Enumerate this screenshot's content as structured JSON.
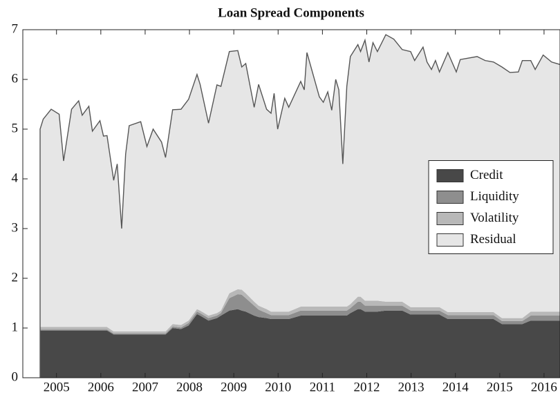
{
  "chart_data": {
    "type": "stacked_area",
    "title": "Loan Spread Components",
    "x": [
      2004.63,
      2004.7,
      2004.88,
      2005.06,
      2005.16,
      2005.34,
      2005.5,
      2005.58,
      2005.73,
      2005.81,
      2005.98,
      2006.06,
      2006.14,
      2006.29,
      2006.37,
      2006.47,
      2006.56,
      2006.64,
      2006.9,
      2007.04,
      2007.18,
      2007.37,
      2007.46,
      2007.62,
      2007.81,
      2007.98,
      2008.17,
      2008.24,
      2008.43,
      2008.62,
      2008.71,
      2008.9,
      2009.09,
      2009.18,
      2009.27,
      2009.46,
      2009.56,
      2009.74,
      2009.84,
      2009.91,
      2009.99,
      2010.15,
      2010.24,
      2010.51,
      2010.59,
      2010.65,
      2010.93,
      2011.02,
      2011.12,
      2011.21,
      2011.3,
      2011.37,
      2011.46,
      2011.55,
      2011.63,
      2011.8,
      2011.86,
      2011.96,
      2012.05,
      2012.14,
      2012.24,
      2012.43,
      2012.61,
      2012.8,
      2012.99,
      2013.08,
      2013.27,
      2013.36,
      2013.46,
      2013.55,
      2013.64,
      2013.83,
      2014.02,
      2014.11,
      2014.49,
      2014.67,
      2014.86,
      2015.05,
      2015.23,
      2015.42,
      2015.51,
      2015.7,
      2015.8,
      2015.98,
      2016.17,
      2016.36
    ],
    "series": [
      {
        "name": "Credit",
        "color": "#484848",
        "values": [
          0.95,
          0.95,
          0.95,
          0.95,
          0.95,
          0.95,
          0.95,
          0.95,
          0.95,
          0.95,
          0.95,
          0.95,
          0.95,
          0.87,
          0.87,
          0.87,
          0.87,
          0.87,
          0.87,
          0.87,
          0.87,
          0.87,
          0.87,
          1.0,
          0.98,
          1.05,
          1.28,
          1.25,
          1.15,
          1.2,
          1.25,
          1.35,
          1.38,
          1.35,
          1.33,
          1.25,
          1.22,
          1.2,
          1.18,
          1.18,
          1.18,
          1.18,
          1.18,
          1.25,
          1.25,
          1.25,
          1.25,
          1.25,
          1.25,
          1.25,
          1.25,
          1.25,
          1.25,
          1.25,
          1.3,
          1.38,
          1.38,
          1.33,
          1.33,
          1.33,
          1.33,
          1.35,
          1.35,
          1.35,
          1.27,
          1.27,
          1.27,
          1.27,
          1.27,
          1.27,
          1.27,
          1.18,
          1.18,
          1.18,
          1.18,
          1.18,
          1.18,
          1.08,
          1.08,
          1.08,
          1.08,
          1.15,
          1.15,
          1.15,
          1.15,
          1.15
        ]
      },
      {
        "name": "Liquidity",
        "color": "#8e8e8e",
        "values": [
          0.02,
          0.02,
          0.02,
          0.02,
          0.02,
          0.02,
          0.02,
          0.02,
          0.02,
          0.02,
          0.02,
          0.02,
          0.02,
          0.02,
          0.02,
          0.02,
          0.02,
          0.02,
          0.02,
          0.02,
          0.02,
          0.02,
          0.02,
          0.03,
          0.03,
          0.05,
          0.05,
          0.05,
          0.05,
          0.05,
          0.05,
          0.25,
          0.3,
          0.32,
          0.27,
          0.2,
          0.15,
          0.1,
          0.08,
          0.08,
          0.08,
          0.08,
          0.08,
          0.1,
          0.1,
          0.1,
          0.1,
          0.1,
          0.1,
          0.1,
          0.1,
          0.1,
          0.1,
          0.1,
          0.1,
          0.15,
          0.15,
          0.12,
          0.12,
          0.12,
          0.12,
          0.1,
          0.1,
          0.1,
          0.08,
          0.08,
          0.08,
          0.08,
          0.08,
          0.08,
          0.08,
          0.08,
          0.08,
          0.08,
          0.08,
          0.08,
          0.08,
          0.06,
          0.06,
          0.06,
          0.06,
          0.1,
          0.1,
          0.1,
          0.1,
          0.1
        ]
      },
      {
        "name": "Volatility",
        "color": "#b8b8b8",
        "values": [
          0.05,
          0.05,
          0.05,
          0.05,
          0.05,
          0.05,
          0.05,
          0.05,
          0.05,
          0.05,
          0.05,
          0.05,
          0.05,
          0.04,
          0.04,
          0.04,
          0.04,
          0.04,
          0.04,
          0.04,
          0.04,
          0.04,
          0.04,
          0.05,
          0.05,
          0.05,
          0.05,
          0.05,
          0.05,
          0.05,
          0.05,
          0.1,
          0.1,
          0.1,
          0.1,
          0.08,
          0.08,
          0.08,
          0.07,
          0.07,
          0.07,
          0.07,
          0.07,
          0.08,
          0.08,
          0.08,
          0.08,
          0.08,
          0.08,
          0.08,
          0.08,
          0.08,
          0.08,
          0.08,
          0.08,
          0.1,
          0.1,
          0.1,
          0.1,
          0.1,
          0.1,
          0.08,
          0.08,
          0.08,
          0.07,
          0.07,
          0.07,
          0.07,
          0.07,
          0.07,
          0.07,
          0.06,
          0.06,
          0.06,
          0.06,
          0.06,
          0.06,
          0.06,
          0.06,
          0.06,
          0.06,
          0.08,
          0.08,
          0.08,
          0.08,
          0.08
        ]
      },
      {
        "name": "Residual",
        "color": "#e6e6e6",
        "values": [
          3.98,
          4.18,
          4.38,
          4.28,
          3.34,
          4.38,
          4.55,
          4.26,
          4.44,
          3.94,
          4.15,
          3.84,
          3.85,
          3.04,
          3.37,
          2.07,
          3.57,
          4.14,
          4.22,
          3.72,
          4.07,
          3.81,
          3.5,
          4.31,
          4.34,
          4.45,
          4.72,
          4.55,
          3.87,
          4.59,
          4.51,
          4.86,
          4.8,
          4.48,
          4.62,
          3.91,
          4.45,
          4.02,
          3.99,
          4.39,
          3.67,
          4.29,
          4.11,
          4.53,
          4.36,
          5.11,
          4.22,
          4.11,
          4.32,
          3.95,
          4.57,
          4.36,
          2.87,
          4.43,
          4.98,
          5.07,
          4.93,
          5.24,
          4.8,
          5.19,
          5.01,
          5.37,
          5.28,
          5.07,
          5.14,
          4.96,
          5.23,
          4.93,
          4.78,
          4.96,
          4.73,
          5.22,
          4.83,
          5.08,
          5.14,
          5.06,
          5.03,
          5.05,
          4.94,
          4.95,
          5.18,
          5.05,
          4.87,
          5.16,
          5.02,
          4.97
        ]
      }
    ],
    "xlim": [
      2004.24,
      2016.36
    ],
    "xticks": [
      2005,
      2006,
      2007,
      2008,
      2009,
      2010,
      2011,
      2012,
      2013,
      2014,
      2015,
      2016
    ],
    "ylim": [
      0,
      7
    ],
    "yticks": [
      0,
      1,
      2,
      3,
      4,
      5,
      6,
      7
    ],
    "line_color": "#555555",
    "legend": "right"
  }
}
